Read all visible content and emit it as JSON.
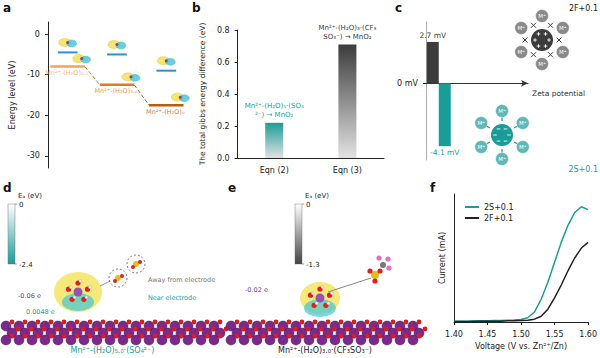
{
  "panel_labels": [
    "a",
    "b",
    "c",
    "d",
    "e",
    "f"
  ],
  "chart_data": [
    {
      "type": "line",
      "categories": [
        "Mn²⁺-(H₂O)₆.₀",
        "Mn²⁺-(H₂O)₃.₀",
        "Mn²⁺-(H₂O)₀"
      ],
      "y_label": "Energy level (eV)",
      "ylim": [
        -33,
        3
      ],
      "yticks": [
        -30,
        -20,
        -10,
        0
      ],
      "tick_labels": "y",
      "series": [
        {
          "colors": [
            "#f0a35e",
            "#de7a2a",
            "#b95c12"
          ],
          "values": [
            -8,
            -12.5,
            -17.5
          ],
          "line_style": "dashed"
        },
        {
          "color": "#2f8fd0",
          "values": [
            -4.5,
            -5,
            -9
          ]
        }
      ]
    },
    {
      "type": "bar",
      "categories": [
        "Eqn (2)",
        "Eqn (3)"
      ],
      "values": [
        0.22,
        0.71
      ],
      "colors": [
        "#1a9c98",
        "#3c3c3c"
      ],
      "annotations": [
        "Mn²⁺-(H₂O)₅·(SO₄²⁻) → MnO₂",
        "Mn²⁺-(H₂O)₃·(CF₃SO₃⁻) → MnO₂"
      ],
      "y_label": "The total gibbs energy difference (eV)",
      "ylim": [
        0,
        0.8
      ],
      "yticks": [
        {
          "value": 0,
          "label": "0.0"
        },
        0.2,
        0.4,
        0.6,
        0.8
      ]
    },
    {
      "type": "bar",
      "categories": [
        "2F+0.1",
        "2S+0.1"
      ],
      "values": [
        2.7,
        -4.1
      ],
      "value_labels": [
        "2.7 mV",
        "-4.1 mV"
      ],
      "data_labels": true,
      "colors": [
        "#3c3c3c",
        "#1a9c98"
      ],
      "x_label": "Zeta potential",
      "ion_label": "M⁺",
      "ylim": [
        -5,
        4
      ],
      "yticks": [
        {
          "value": 0,
          "label": "0 mV"
        }
      ]
    },
    {
      "type": "line",
      "x_label": "Voltage (V vs. Zn²⁺/Zn)",
      "y_label": "Current (mA)",
      "x": [
        1.4,
        1.41,
        1.42,
        1.43,
        1.44,
        1.45,
        1.46,
        1.47,
        1.48,
        1.49,
        1.5,
        1.51,
        1.52,
        1.53,
        1.54,
        1.55,
        1.56,
        1.57,
        1.58,
        1.59,
        1.6
      ],
      "series": [
        {
          "name": "2S+0.1",
          "color": "#1a9c98",
          "values": [
            0.003,
            0.003,
            0.003,
            0.004,
            0.004,
            0.004,
            0.005,
            0.005,
            0.006,
            0.007,
            0.009,
            0.015,
            0.035,
            0.08,
            0.14,
            0.21,
            0.28,
            0.34,
            0.385,
            0.405,
            0.395
          ]
        },
        {
          "name": "2F+0.1",
          "color": "#222222",
          "values": [
            0.002,
            0.002,
            0.002,
            0.002,
            0.003,
            0.003,
            0.003,
            0.003,
            0.004,
            0.004,
            0.005,
            0.006,
            0.01,
            0.02,
            0.045,
            0.085,
            0.13,
            0.18,
            0.225,
            0.26,
            0.28
          ]
        }
      ],
      "xlim": [
        1.4,
        1.6
      ],
      "xticks": [
        {
          "value": 1.4,
          "label": "1.40"
        },
        1.45,
        {
          "value": 1.5,
          "label": "1.50"
        },
        1.55,
        {
          "value": 1.6,
          "label": "1.60"
        }
      ],
      "ylim": [
        0,
        0.45
      ],
      "yticks": [],
      "tick_labels": "x",
      "grid": false,
      "legend": "upper left"
    }
  ],
  "figures": [
    {
      "title": "Mn²⁺-(H₂O)₅.₀·(SO₄²⁻)",
      "color": "#1a9c98",
      "colorbar": {
        "title": "Eₐ (eV)",
        "range": [
          -2.4,
          0
        ],
        "ticks": [
          -2.4,
          0
        ],
        "color": "#1a9c98"
      },
      "annotations": [
        {
          "text": "-0.06 e",
          "color": "#5b3e9e"
        },
        {
          "text": "0.0048 e",
          "color": "#1a9c98"
        },
        {
          "text": "Away from electrode",
          "color": "#777777"
        },
        {
          "text": "Near electrode",
          "color": "#1a9c98"
        }
      ]
    },
    {
      "title": "Mn²⁺-(H₂O)₃.₀·(CF₃SO₃⁻)",
      "color": "#222222",
      "colorbar": {
        "title": "Eₐ (eV)",
        "range": [
          -1.3,
          0
        ],
        "ticks": [
          -1.3,
          0
        ],
        "color": "#444444"
      },
      "annotations": [
        {
          "text": "-0.02 e",
          "color": "#5b3e9e"
        }
      ]
    }
  ]
}
